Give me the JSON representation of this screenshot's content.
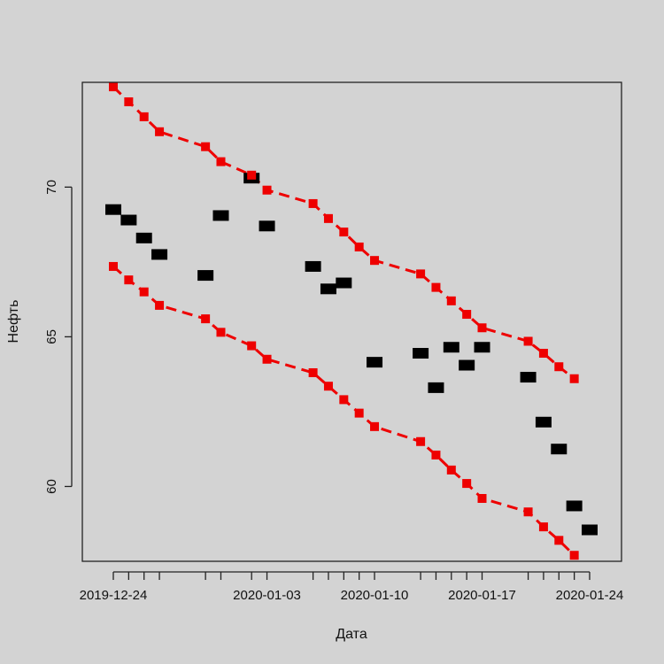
{
  "chart_data": {
    "type": "scatter",
    "title": "",
    "xlabel": "Дата",
    "ylabel": "Нефть",
    "x_tick_labels": [
      "2019-12-24",
      "2020-01-03",
      "2020-01-10",
      "2020-01-17",
      "2020-01-24"
    ],
    "x_tick_values": [
      "2019-12-24",
      "2020-01-03",
      "2020-01-10",
      "2020-01-17",
      "2020-01-24"
    ],
    "y_ticks": [
      60,
      65,
      70
    ],
    "xlim": [
      "2019-12-24",
      "2020-01-24"
    ],
    "ylim": [
      57.5,
      73.5
    ],
    "grid": false,
    "x": [
      "2019-12-24",
      "2019-12-25",
      "2019-12-26",
      "2019-12-27",
      "2019-12-30",
      "2019-12-31",
      "2020-01-02",
      "2020-01-03",
      "2020-01-06",
      "2020-01-07",
      "2020-01-08",
      "2020-01-09",
      "2020-01-10",
      "2020-01-13",
      "2020-01-14",
      "2020-01-15",
      "2020-01-16",
      "2020-01-17",
      "2020-01-20",
      "2020-01-21",
      "2020-01-22",
      "2020-01-23",
      "2020-01-24"
    ],
    "series": [
      {
        "role": "observed",
        "color": "#000000",
        "marker": "square",
        "values": [
          69.25,
          68.9,
          68.3,
          67.75,
          67.05,
          69.05,
          70.3,
          68.7,
          67.35,
          66.6,
          66.8,
          null,
          64.15,
          64.45,
          63.3,
          64.65,
          64.05,
          64.65,
          63.65,
          62.15,
          61.25,
          59.35,
          58.55
        ]
      },
      {
        "role": "upper_band",
        "color": "#ee0000",
        "marker": "square",
        "line": "dashed",
        "values": [
          73.35,
          72.85,
          72.35,
          71.85,
          71.35,
          70.85,
          70.4,
          69.9,
          69.45,
          68.95,
          68.5,
          68.0,
          67.55,
          67.1,
          66.65,
          66.2,
          65.75,
          65.3,
          64.85,
          64.45,
          64.0,
          63.6,
          null
        ]
      },
      {
        "role": "lower_band",
        "color": "#ee0000",
        "marker": "square",
        "line": "dashed",
        "values": [
          67.35,
          66.9,
          66.5,
          66.05,
          65.6,
          65.15,
          64.7,
          64.25,
          63.8,
          63.35,
          62.9,
          62.45,
          62.0,
          61.5,
          61.05,
          60.55,
          60.1,
          59.6,
          59.15,
          58.65,
          58.2,
          57.7,
          null
        ]
      }
    ]
  }
}
